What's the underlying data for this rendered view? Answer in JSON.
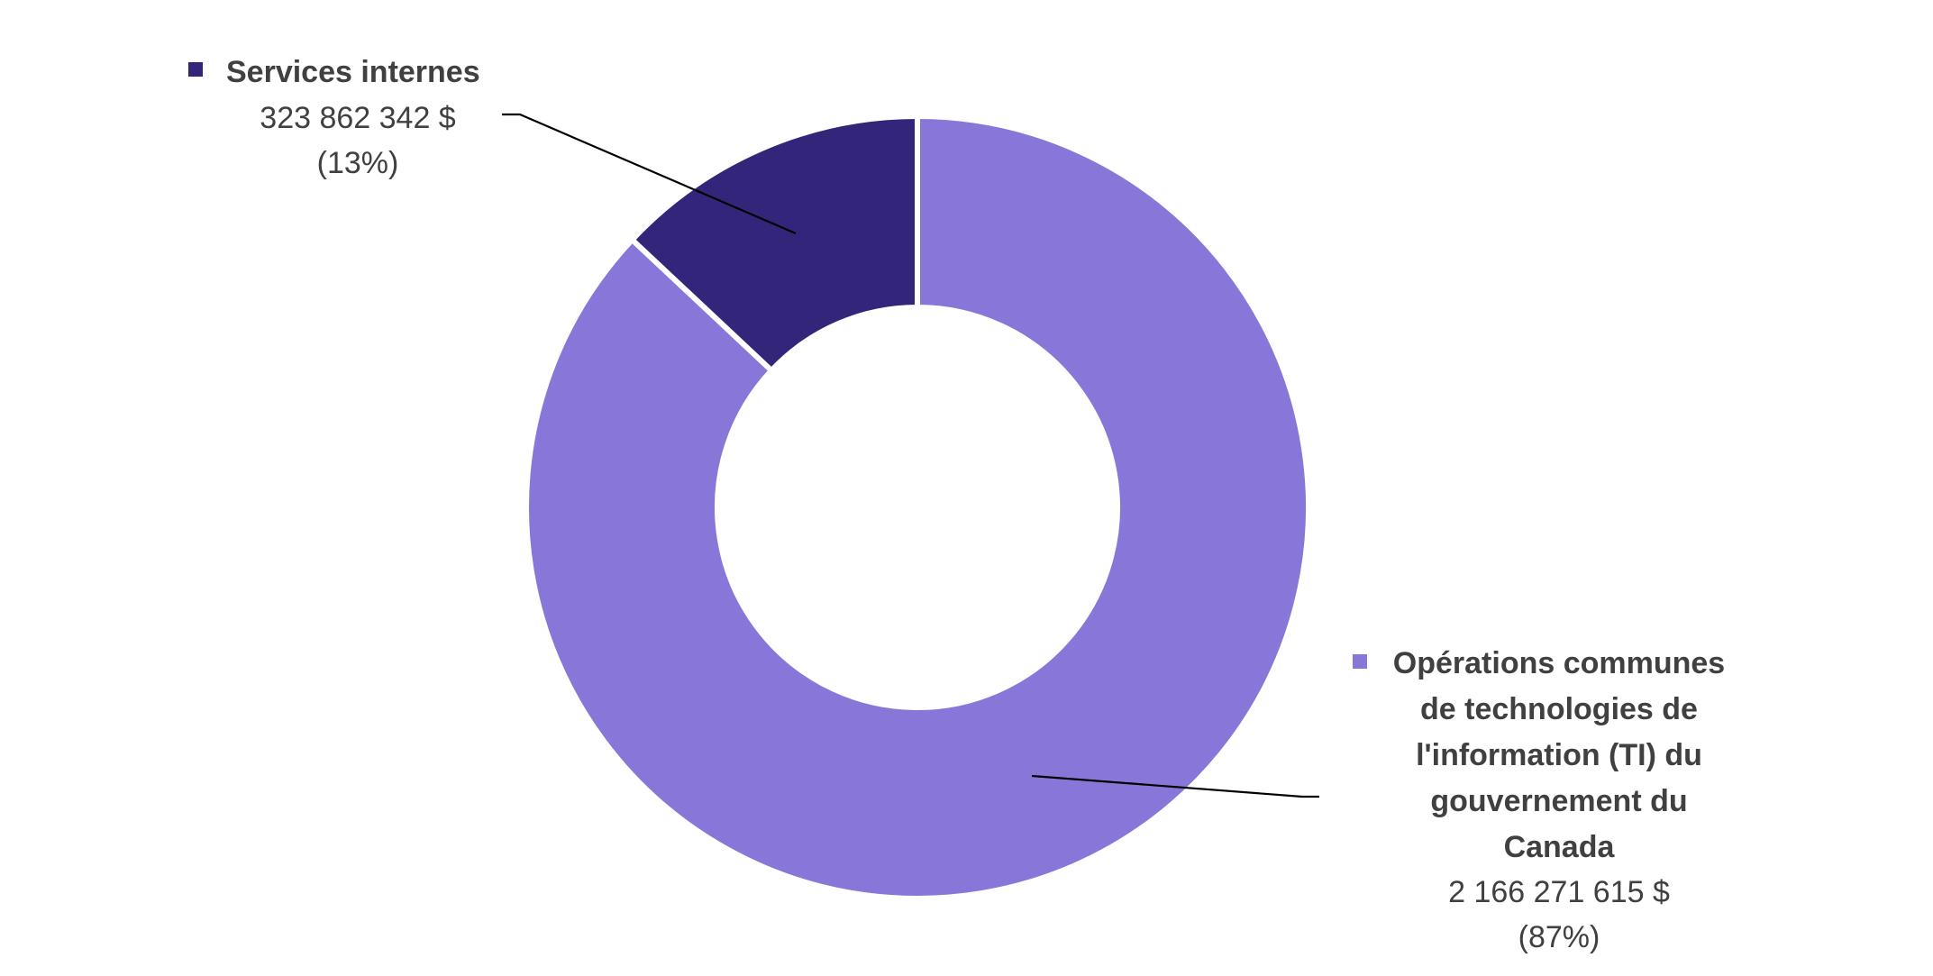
{
  "chart_data": {
    "type": "pie",
    "donut": true,
    "slices": [
      {
        "name": "Opérations communes de technologies de l'information (TI) du gouvernement du Canada",
        "name_lines": [
          "Opérations communes",
          "de technologies de",
          "l'information (TI) du",
          "gouvernement du",
          "Canada"
        ],
        "value": 2166271615,
        "value_label": "2 166 271 615 $",
        "percent_label": "(87%)",
        "color": "#8877d8"
      },
      {
        "name": "Services internes",
        "name_lines": [
          "Services internes"
        ],
        "value": 323862342,
        "value_label": "323 862 342 $",
        "percent_label": "(13%)",
        "color": "#33257a"
      }
    ]
  }
}
